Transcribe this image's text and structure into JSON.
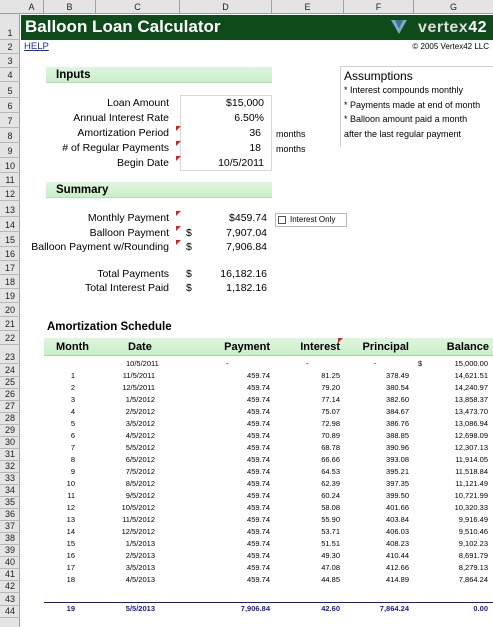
{
  "columns": [
    "A",
    "B",
    "C",
    "D",
    "E",
    "F",
    "G"
  ],
  "rows": [
    "1",
    "2",
    "3",
    "4",
    "5",
    "6",
    "7",
    "8",
    "9",
    "10",
    "11",
    "12",
    "13",
    "14",
    "15",
    "16",
    "17",
    "18",
    "19",
    "20",
    "21",
    "22",
    "23",
    "24",
    "25",
    "26",
    "27",
    "28",
    "29",
    "30",
    "31",
    "32",
    "33",
    "34",
    "35",
    "36",
    "37",
    "38",
    "39",
    "40",
    "41",
    "42",
    "43",
    "44"
  ],
  "header": {
    "title": "Balloon Loan Calculator",
    "logo_text": "vertex",
    "logo_number": "42",
    "help": "HELP",
    "copyright": "© 2005 Vertex42 LLC"
  },
  "inputs": {
    "section": "Inputs",
    "loan_amount_label": "Loan Amount",
    "loan_amount": "$15,000",
    "rate_label": "Annual Interest Rate",
    "rate": "6.50%",
    "amort_label": "Amortization Period",
    "amort": "36",
    "amort_unit": "months",
    "payments_label": "# of Regular Payments",
    "payments": "18",
    "payments_unit": "months",
    "begin_label": "Begin Date",
    "begin": "10/5/2011"
  },
  "assumptions": {
    "title": "Assumptions",
    "items": [
      "* Interest compounds monthly",
      "* Payments made at end of month",
      "* Balloon amount paid a month",
      "after the last regular payment"
    ]
  },
  "summary": {
    "section": "Summary",
    "monthly_label": "Monthly Payment",
    "monthly": "$459.74",
    "interest_only": "Interest Only",
    "balloon_label": "Balloon Payment",
    "balloon_cur": "$",
    "balloon": "7,907.04",
    "balloon_r_label": "Balloon Payment w/Rounding",
    "balloon_r_cur": "$",
    "balloon_r": "7,906.84",
    "total_pay_label": "Total Payments",
    "total_pay_cur": "$",
    "total_pay": "16,182.16",
    "total_int_label": "Total Interest Paid",
    "total_int_cur": "$",
    "total_int": "1,182.16"
  },
  "schedule": {
    "title": "Amortization Schedule",
    "headers": [
      "Month",
      "Date",
      "Payment",
      "Interest",
      "Principal",
      "Balance"
    ],
    "first": {
      "date": "10/5/2011",
      "payment": "-",
      "interest": "-",
      "principal": "-",
      "balance_cur": "$",
      "balance": "15,000.00"
    },
    "rows": [
      [
        "1",
        "11/5/2011",
        "459.74",
        "81.25",
        "378.49",
        "14,621.51"
      ],
      [
        "2",
        "12/5/2011",
        "459.74",
        "79.20",
        "380.54",
        "14,240.97"
      ],
      [
        "3",
        "1/5/2012",
        "459.74",
        "77.14",
        "382.60",
        "13,858.37"
      ],
      [
        "4",
        "2/5/2012",
        "459.74",
        "75.07",
        "384.67",
        "13,473.70"
      ],
      [
        "5",
        "3/5/2012",
        "459.74",
        "72.98",
        "386.76",
        "13,086.94"
      ],
      [
        "6",
        "4/5/2012",
        "459.74",
        "70.89",
        "388.85",
        "12,698.09"
      ],
      [
        "7",
        "5/5/2012",
        "459.74",
        "68.78",
        "390.96",
        "12,307.13"
      ],
      [
        "8",
        "6/5/2012",
        "459.74",
        "66.66",
        "393.08",
        "11,914.05"
      ],
      [
        "9",
        "7/5/2012",
        "459.74",
        "64.53",
        "395.21",
        "11,518.84"
      ],
      [
        "10",
        "8/5/2012",
        "459.74",
        "62.39",
        "397.35",
        "11,121.49"
      ],
      [
        "11",
        "9/5/2012",
        "459.74",
        "60.24",
        "399.50",
        "10,721.99"
      ],
      [
        "12",
        "10/5/2012",
        "459.74",
        "58.08",
        "401.66",
        "10,320.33"
      ],
      [
        "13",
        "11/5/2012",
        "459.74",
        "55.90",
        "403.84",
        "9,916.49"
      ],
      [
        "14",
        "12/5/2012",
        "459.74",
        "53.71",
        "406.03",
        "9,510.46"
      ],
      [
        "15",
        "1/5/2013",
        "459.74",
        "51.51",
        "408.23",
        "9,102.23"
      ],
      [
        "16",
        "2/5/2013",
        "459.74",
        "49.30",
        "410.44",
        "8,691.79"
      ],
      [
        "17",
        "3/5/2013",
        "459.74",
        "47.08",
        "412.66",
        "8,279.13"
      ],
      [
        "18",
        "4/5/2013",
        "459.74",
        "44.85",
        "414.89",
        "7,864.24"
      ]
    ],
    "final": [
      "19",
      "5/5/2013",
      "7,906.84",
      "42.60",
      "7,864.24",
      "0.00"
    ]
  },
  "colors": {
    "title_bar": "#0e4a1a",
    "section_band": "#c9efc9",
    "final_row": "#1a1a99",
    "comment_marker": "#e0201a"
  }
}
